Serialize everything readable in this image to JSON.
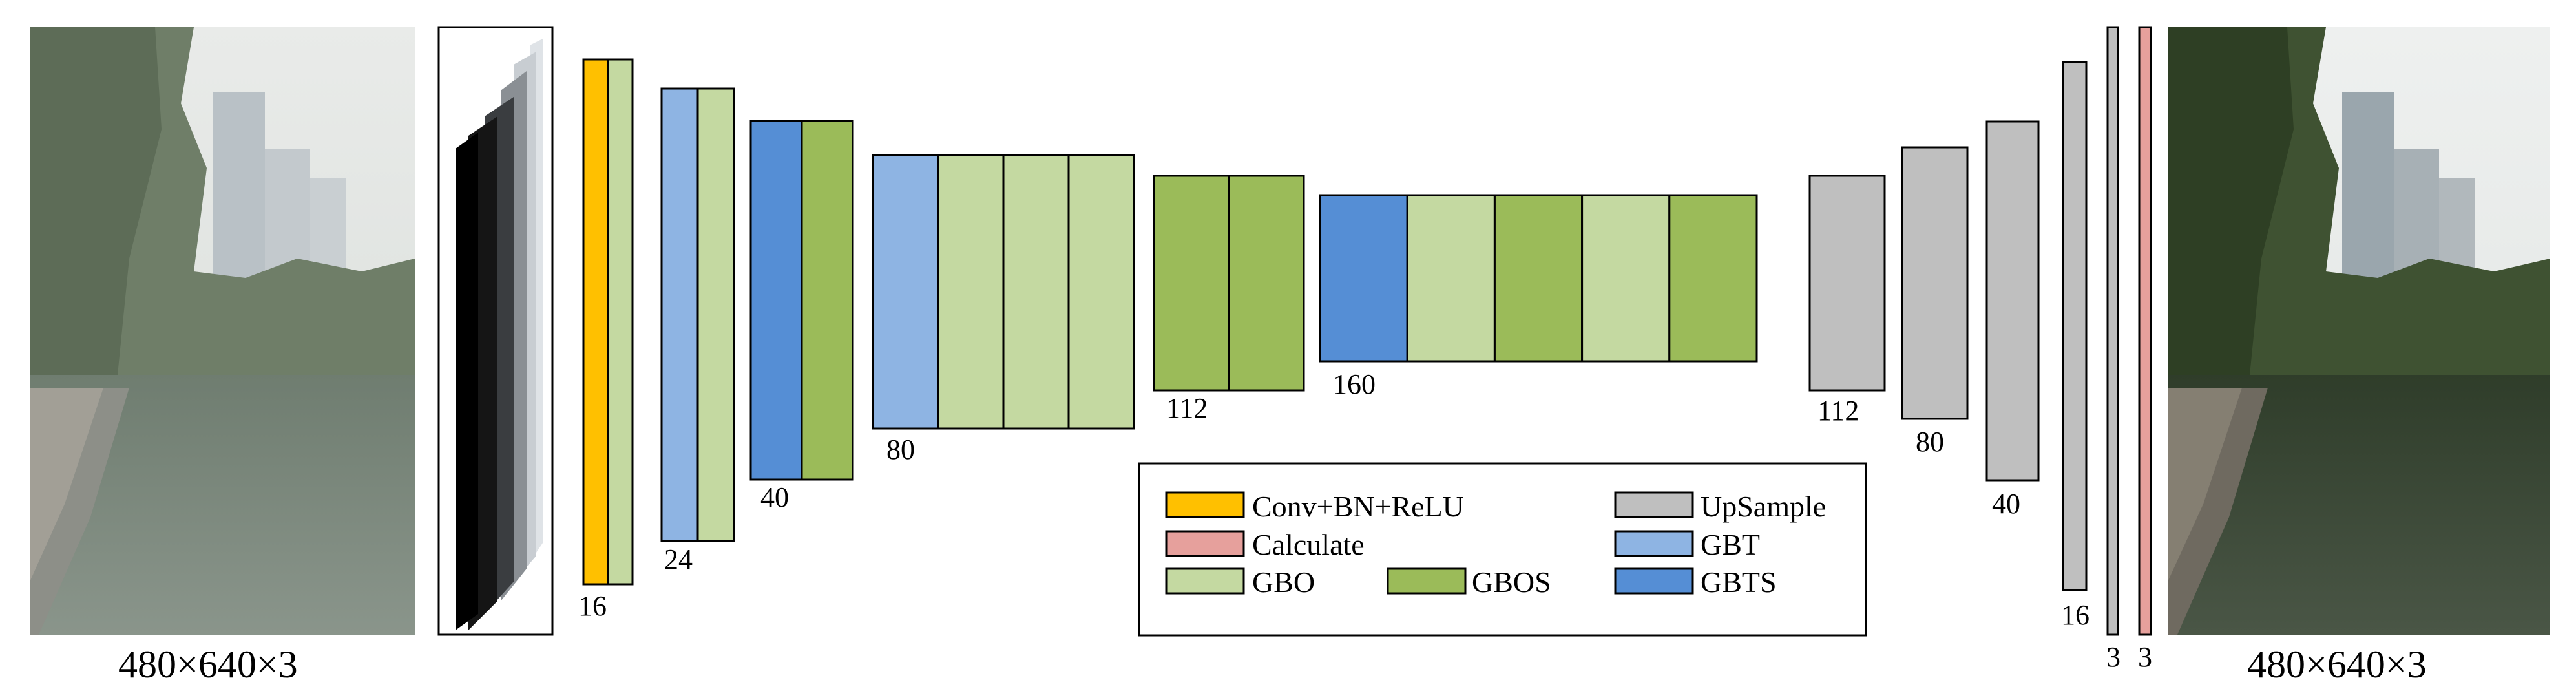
{
  "colors": {
    "conv": "#ffc000",
    "calculate": "#e6a09c",
    "gbo": "#c4d9a1",
    "gbos": "#9bbb59",
    "upsample": "#bfbfbf",
    "gbt": "#8eb4e3",
    "gbts": "#558ed5"
  },
  "input_image": {
    "icon": "photo-lake-hazy",
    "dims": "480×640×3"
  },
  "output_image": {
    "icon": "photo-lake-clear",
    "dims": "480×640×3"
  },
  "blocks": [
    {
      "label": "16",
      "layers": [
        "conv",
        "gbo"
      ]
    },
    {
      "label": "24",
      "layers": [
        "gbt",
        "gbo"
      ]
    },
    {
      "label": "40",
      "layers": [
        "gbts",
        "gbos"
      ]
    },
    {
      "label": "80",
      "layers": [
        "gbt",
        "gbo",
        "gbo",
        "gbo"
      ]
    },
    {
      "label": "112",
      "layers": [
        "gbos",
        "gbos"
      ]
    },
    {
      "label": "160",
      "layers": [
        "gbts",
        "gbo",
        "gbos",
        "gbo",
        "gbos"
      ]
    },
    {
      "label": "112",
      "layers": [
        "upsample"
      ]
    },
    {
      "label": "80",
      "layers": [
        "upsample"
      ]
    },
    {
      "label": "40",
      "layers": [
        "upsample"
      ]
    },
    {
      "label": "16",
      "layers": [
        "upsample"
      ]
    },
    {
      "label": "3",
      "layers": [
        "upsample"
      ]
    },
    {
      "label": "3",
      "layers": [
        "calculate"
      ]
    }
  ],
  "legend": [
    {
      "key": "conv",
      "label": "Conv+BN+ReLU"
    },
    {
      "key": "upsample",
      "label": "UpSample"
    },
    {
      "key": "calculate",
      "label": "Calculate"
    },
    {
      "key": "gbt",
      "label": "GBT"
    },
    {
      "key": "gbo",
      "label": "GBO"
    },
    {
      "key": "gbos",
      "label": "GBOS"
    },
    {
      "key": "gbts",
      "label": "GBTS"
    }
  ]
}
